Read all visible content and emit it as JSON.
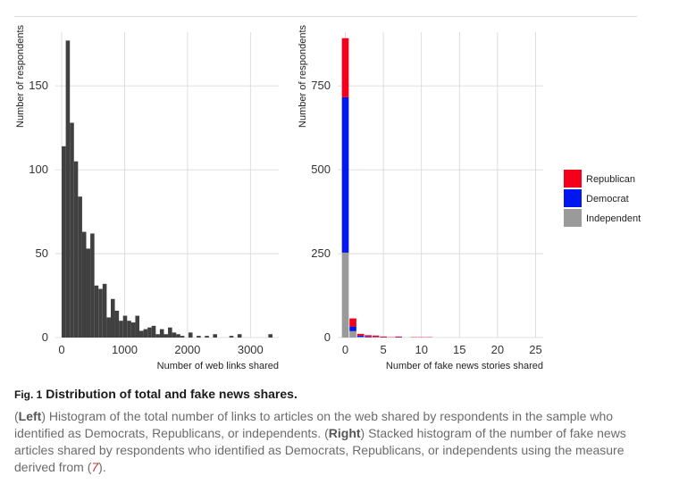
{
  "chart_data": [
    {
      "type": "bar",
      "panel": "left",
      "xlabel": "Number of web links shared",
      "ylabel": "Number of respondents",
      "xlim": [
        -100,
        3450
      ],
      "ylim": [
        0,
        182
      ],
      "xticks": [
        0,
        1000,
        2000,
        3000
      ],
      "yticks": [
        0,
        50,
        100,
        150
      ],
      "bin_width": 65,
      "bins": [
        {
          "x": 0,
          "y": 114
        },
        {
          "x": 65,
          "y": 177
        },
        {
          "x": 130,
          "y": 128
        },
        {
          "x": 195,
          "y": 105
        },
        {
          "x": 260,
          "y": 84
        },
        {
          "x": 325,
          "y": 63
        },
        {
          "x": 390,
          "y": 53
        },
        {
          "x": 455,
          "y": 62
        },
        {
          "x": 520,
          "y": 31
        },
        {
          "x": 585,
          "y": 29
        },
        {
          "x": 650,
          "y": 32
        },
        {
          "x": 715,
          "y": 12
        },
        {
          "x": 780,
          "y": 23
        },
        {
          "x": 845,
          "y": 16
        },
        {
          "x": 910,
          "y": 10
        },
        {
          "x": 975,
          "y": 13
        },
        {
          "x": 1040,
          "y": 10
        },
        {
          "x": 1105,
          "y": 9
        },
        {
          "x": 1170,
          "y": 13
        },
        {
          "x": 1235,
          "y": 4
        },
        {
          "x": 1300,
          "y": 5
        },
        {
          "x": 1365,
          "y": 6
        },
        {
          "x": 1430,
          "y": 7
        },
        {
          "x": 1495,
          "y": 2
        },
        {
          "x": 1560,
          "y": 5
        },
        {
          "x": 1625,
          "y": 2
        },
        {
          "x": 1690,
          "y": 6
        },
        {
          "x": 1755,
          "y": 3
        },
        {
          "x": 1820,
          "y": 2
        },
        {
          "x": 1885,
          "y": 1
        },
        {
          "x": 2015,
          "y": 3
        },
        {
          "x": 2145,
          "y": 1
        },
        {
          "x": 2275,
          "y": 1
        },
        {
          "x": 2405,
          "y": 2
        },
        {
          "x": 2665,
          "y": 1
        },
        {
          "x": 2795,
          "y": 2
        },
        {
          "x": 3285,
          "y": 2
        }
      ],
      "colors": {
        "bar": "#404040"
      }
    },
    {
      "type": "bar",
      "stacked": true,
      "panel": "right",
      "xlabel": "Number of fake news stories shared",
      "ylabel": "Number of respondents",
      "xlim": [
        -1,
        26
      ],
      "ylim": [
        0,
        910
      ],
      "xticks": [
        0,
        5,
        10,
        15,
        20,
        25
      ],
      "yticks": [
        0,
        250,
        500,
        750
      ],
      "categories": [
        0,
        1,
        2,
        3,
        4,
        5,
        6,
        7,
        8,
        9,
        10,
        11
      ],
      "series": [
        {
          "name": "Independent",
          "color": "#9a9a9a",
          "values": [
            253,
            19,
            2,
            1,
            1,
            0,
            0,
            0,
            0,
            0,
            0,
            0
          ]
        },
        {
          "name": "Democrat",
          "color": "#0018ef",
          "values": [
            463,
            14,
            4,
            2,
            1,
            1,
            0,
            1,
            0,
            0,
            0,
            0
          ]
        },
        {
          "name": "Republican",
          "color": "#f5001a",
          "values": [
            176,
            24,
            5,
            4,
            4,
            2,
            1,
            2,
            0,
            1,
            1,
            1
          ]
        }
      ],
      "legend": {
        "position": "right",
        "order": [
          "Republican",
          "Democrat",
          "Independent"
        ]
      }
    }
  ],
  "caption": {
    "fig_label": "Fig. 1",
    "title": "Distribution of total and fake news shares.",
    "left_label": "Left",
    "left_text": "Histogram of the total number of links to articles on the web shared by respondents in the sample who identified as Democrats, Republicans, or independents.",
    "right_label": "Right",
    "right_text": "Stacked histogram of the number of fake news articles shared by respondents who identified as Democrats, Republicans, or independents using the measure derived from",
    "ref": "7"
  }
}
